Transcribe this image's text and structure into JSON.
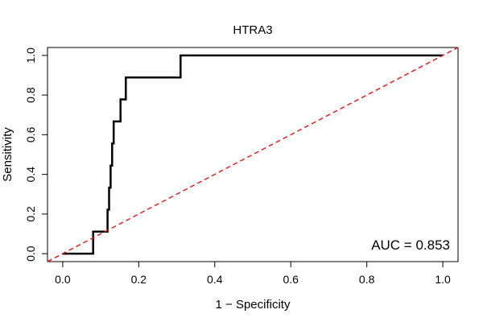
{
  "chart_data": {
    "type": "line",
    "title": "HTRA3",
    "xlabel": "1 − Specificity",
    "ylabel": "Sensitivity",
    "xlim": [
      -0.04,
      1.04
    ],
    "ylim": [
      -0.04,
      1.04
    ],
    "x_ticks": [
      "0.0",
      "0.2",
      "0.4",
      "0.6",
      "0.8",
      "1.0"
    ],
    "x_tick_values": [
      0,
      0.2,
      0.4,
      0.6,
      0.8,
      1.0
    ],
    "y_ticks": [
      "0.0",
      "0.2",
      "0.4",
      "0.6",
      "0.8",
      "1.0"
    ],
    "y_tick_values": [
      0,
      0.2,
      0.4,
      0.6,
      0.8,
      1.0
    ],
    "annotation": "AUC = 0.853",
    "series": [
      {
        "name": "ROC curve",
        "color": "#000000",
        "x": [
          0,
          0.08,
          0.08,
          0.118,
          0.118,
          0.122,
          0.122,
          0.126,
          0.126,
          0.13,
          0.13,
          0.134,
          0.134,
          0.14,
          0.14,
          0.152,
          0.152,
          0.166,
          0.166,
          0.31,
          0.31,
          1.0
        ],
        "y": [
          0,
          0,
          0.111,
          0.111,
          0.222,
          0.222,
          0.333,
          0.333,
          0.444,
          0.444,
          0.556,
          0.556,
          0.667,
          0.667,
          0.667,
          0.667,
          0.778,
          0.778,
          0.889,
          0.889,
          1.0,
          1.0
        ]
      },
      {
        "name": "Reference",
        "color": "#e41a1c",
        "dashed": true,
        "x": [
          -0.04,
          1.04
        ],
        "y": [
          -0.04,
          1.04
        ]
      }
    ]
  }
}
